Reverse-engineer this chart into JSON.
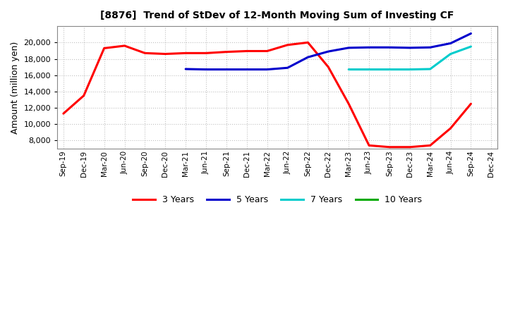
{
  "title": "[8876]  Trend of StDev of 12-Month Moving Sum of Investing CF",
  "ylabel": "Amount (million yen)",
  "background_color": "#ffffff",
  "grid_color": "#999999",
  "x_labels": [
    "Sep-19",
    "Dec-19",
    "Mar-20",
    "Jun-20",
    "Sep-20",
    "Dec-20",
    "Mar-21",
    "Jun-21",
    "Sep-21",
    "Dec-21",
    "Mar-22",
    "Jun-22",
    "Sep-22",
    "Dec-22",
    "Mar-23",
    "Jun-23",
    "Sep-23",
    "Dec-23",
    "Mar-24",
    "Jun-24",
    "Sep-24",
    "Dec-24"
  ],
  "series": {
    "3 Years": {
      "color": "#ff0000",
      "linewidth": 2.2,
      "data_x": [
        0,
        1,
        2,
        3,
        4,
        5,
        6,
        7,
        8,
        9,
        10,
        11,
        12,
        13,
        14,
        15,
        16,
        17,
        18,
        19,
        20
      ],
      "data_y": [
        11300,
        13500,
        19300,
        19600,
        18700,
        18600,
        18700,
        18700,
        18850,
        18950,
        18950,
        19700,
        20000,
        17000,
        12500,
        7400,
        7200,
        7200,
        7400,
        9500,
        12500
      ]
    },
    "5 Years": {
      "color": "#0000cc",
      "linewidth": 2.2,
      "data_x": [
        6,
        7,
        8,
        9,
        10,
        11,
        12,
        13,
        14,
        15,
        16,
        17,
        18,
        19,
        20
      ],
      "data_y": [
        16750,
        16700,
        16700,
        16700,
        16700,
        16900,
        18200,
        18900,
        19350,
        19400,
        19400,
        19350,
        19400,
        19900,
        21100
      ]
    },
    "7 Years": {
      "color": "#00cccc",
      "linewidth": 2.2,
      "data_x": [
        14,
        15,
        16,
        17,
        18,
        19,
        20
      ],
      "data_y": [
        16700,
        16700,
        16700,
        16700,
        16750,
        18600,
        19500
      ]
    },
    "10 Years": {
      "color": "#00aa00",
      "linewidth": 2.2,
      "data_x": [],
      "data_y": []
    }
  },
  "ylim": [
    7000,
    22000
  ],
  "yticks": [
    8000,
    10000,
    12000,
    14000,
    16000,
    18000,
    20000
  ],
  "legend_labels": [
    "3 Years",
    "5 Years",
    "7 Years",
    "10 Years"
  ],
  "legend_colors": [
    "#ff0000",
    "#0000cc",
    "#00cccc",
    "#00aa00"
  ]
}
